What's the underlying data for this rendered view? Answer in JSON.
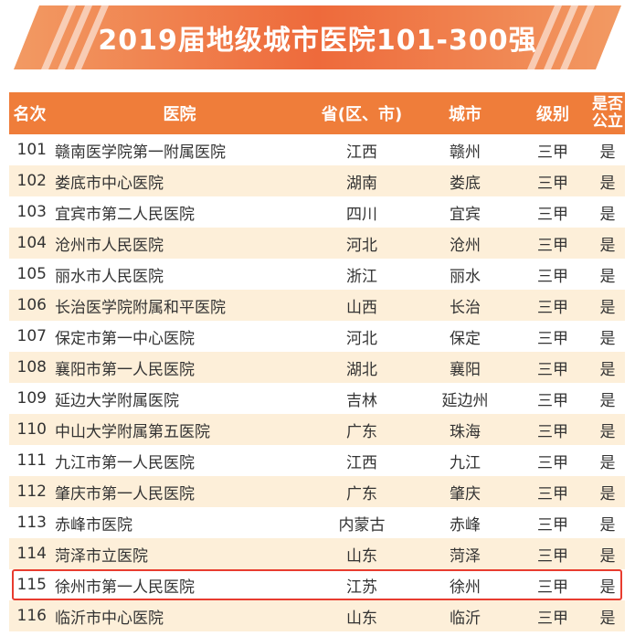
{
  "title": "2019届地级城市医院101-300强",
  "colors": {
    "accent": "#ef7d3a",
    "stripe": "#fdefd9",
    "highlight": "#e83c2f"
  },
  "headers": {
    "rank": "名次",
    "hospital": "医院",
    "province": "省(区、市)",
    "city": "城市",
    "level": "级别",
    "public_line1": "是否",
    "public_line2": "公立"
  },
  "rows": [
    {
      "rank": "101",
      "hospital": "赣南医学院第一附属医院",
      "province": "江西",
      "city": "赣州",
      "level": "三甲",
      "public": "是"
    },
    {
      "rank": "102",
      "hospital": "娄底市中心医院",
      "province": "湖南",
      "city": "娄底",
      "level": "三甲",
      "public": "是"
    },
    {
      "rank": "103",
      "hospital": "宜宾市第二人民医院",
      "province": "四川",
      "city": "宜宾",
      "level": "三甲",
      "public": "是"
    },
    {
      "rank": "104",
      "hospital": "沧州市人民医院",
      "province": "河北",
      "city": "沧州",
      "level": "三甲",
      "public": "是"
    },
    {
      "rank": "105",
      "hospital": "丽水市人民医院",
      "province": "浙江",
      "city": "丽水",
      "level": "三甲",
      "public": "是"
    },
    {
      "rank": "106",
      "hospital": "长治医学院附属和平医院",
      "province": "山西",
      "city": "长治",
      "level": "三甲",
      "public": "是"
    },
    {
      "rank": "107",
      "hospital": "保定市第一中心医院",
      "province": "河北",
      "city": "保定",
      "level": "三甲",
      "public": "是"
    },
    {
      "rank": "108",
      "hospital": "襄阳市第一人民医院",
      "province": "湖北",
      "city": "襄阳",
      "level": "三甲",
      "public": "是"
    },
    {
      "rank": "109",
      "hospital": "延边大学附属医院",
      "province": "吉林",
      "city": "延边州",
      "level": "三甲",
      "public": "是"
    },
    {
      "rank": "110",
      "hospital": "中山大学附属第五医院",
      "province": "广东",
      "city": "珠海",
      "level": "三甲",
      "public": "是"
    },
    {
      "rank": "111",
      "hospital": "九江市第一人民医院",
      "province": "江西",
      "city": "九江",
      "level": "三甲",
      "public": "是"
    },
    {
      "rank": "112",
      "hospital": "肇庆市第一人民医院",
      "province": "广东",
      "city": "肇庆",
      "level": "三甲",
      "public": "是"
    },
    {
      "rank": "113",
      "hospital": "赤峰市医院",
      "province": "内蒙古",
      "city": "赤峰",
      "level": "三甲",
      "public": "是"
    },
    {
      "rank": "114",
      "hospital": "菏泽市立医院",
      "province": "山东",
      "city": "菏泽",
      "level": "三甲",
      "public": "是"
    },
    {
      "rank": "115",
      "hospital": "徐州市第一人民医院",
      "province": "江苏",
      "city": "徐州",
      "level": "三甲",
      "public": "是"
    },
    {
      "rank": "116",
      "hospital": "临沂市中心医院",
      "province": "山东",
      "city": "临沂",
      "level": "三甲",
      "public": "是"
    }
  ],
  "highlighted_rank": "115"
}
